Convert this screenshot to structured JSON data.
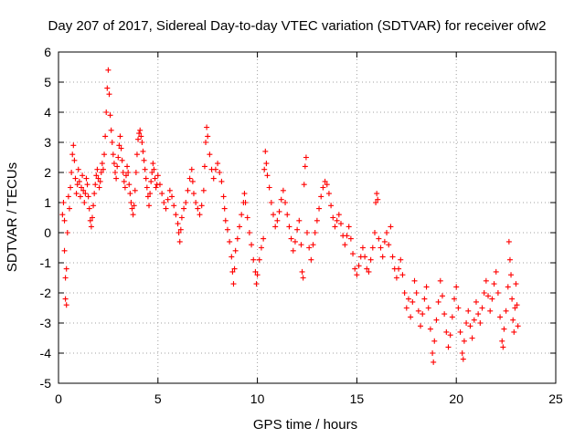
{
  "chart_data": {
    "type": "scatter",
    "title": "Day 207 of 2017, Sidereal Day-to-day VTEC variation (SDTVAR) for receiver ofw2",
    "xlabel": "GPS time / hours",
    "ylabel": "SDTVAR / TECUs",
    "xlim": [
      0,
      25
    ],
    "ylim": [
      -5,
      6
    ],
    "xticks": [
      0,
      5,
      10,
      15,
      20,
      25
    ],
    "yticks": [
      -5,
      -4,
      -3,
      -2,
      -1,
      0,
      1,
      2,
      3,
      4,
      5,
      6
    ],
    "grid": true,
    "marker": "plus",
    "marker_color": "#ff0000",
    "series": [
      {
        "name": "ofw2",
        "points": [
          [
            0.2,
            0.6
          ],
          [
            0.25,
            1.0
          ],
          [
            0.3,
            0.4
          ],
          [
            0.3,
            -0.6
          ],
          [
            0.35,
            -1.5
          ],
          [
            0.35,
            -2.2
          ],
          [
            0.4,
            -2.4
          ],
          [
            0.4,
            -1.2
          ],
          [
            0.45,
            0.0
          ],
          [
            0.5,
            1.2
          ],
          [
            0.55,
            0.8
          ],
          [
            0.6,
            1.5
          ],
          [
            0.65,
            2.0
          ],
          [
            0.7,
            2.6
          ],
          [
            0.75,
            2.9
          ],
          [
            0.8,
            2.4
          ],
          [
            0.85,
            1.8
          ],
          [
            0.9,
            1.3
          ],
          [
            0.95,
            1.6
          ],
          [
            1.0,
            2.1
          ],
          [
            1.05,
            1.7
          ],
          [
            1.1,
            1.2
          ],
          [
            1.15,
            1.5
          ],
          [
            1.2,
            1.9
          ],
          [
            1.25,
            1.4
          ],
          [
            1.3,
            1.0
          ],
          [
            1.35,
            1.3
          ],
          [
            1.4,
            1.8
          ],
          [
            1.45,
            1.6
          ],
          [
            1.5,
            1.2
          ],
          [
            1.55,
            0.8
          ],
          [
            1.6,
            0.4
          ],
          [
            1.65,
            0.2
          ],
          [
            1.7,
            0.5
          ],
          [
            1.75,
            0.9
          ],
          [
            1.8,
            1.3
          ],
          [
            1.85,
            1.6
          ],
          [
            1.9,
            1.9
          ],
          [
            1.95,
            2.1
          ],
          [
            2.0,
            1.8
          ],
          [
            2.05,
            1.5
          ],
          [
            2.1,
            1.7
          ],
          [
            2.15,
            2.0
          ],
          [
            2.2,
            2.3
          ],
          [
            2.25,
            2.1
          ],
          [
            2.3,
            2.6
          ],
          [
            2.35,
            3.2
          ],
          [
            2.4,
            4.0
          ],
          [
            2.45,
            4.8
          ],
          [
            2.5,
            5.4
          ],
          [
            2.55,
            4.6
          ],
          [
            2.6,
            3.9
          ],
          [
            2.65,
            3.4
          ],
          [
            2.7,
            3.0
          ],
          [
            2.75,
            2.6
          ],
          [
            2.8,
            2.3
          ],
          [
            2.85,
            2.0
          ],
          [
            2.9,
            1.8
          ],
          [
            2.95,
            2.2
          ],
          [
            3.0,
            2.5
          ],
          [
            3.05,
            2.9
          ],
          [
            3.1,
            3.2
          ],
          [
            3.15,
            2.8
          ],
          [
            3.2,
            2.4
          ],
          [
            3.25,
            2.0
          ],
          [
            3.3,
            1.7
          ],
          [
            3.35,
            1.5
          ],
          [
            3.4,
            1.9
          ],
          [
            3.45,
            2.2
          ],
          [
            3.5,
            2.0
          ],
          [
            3.55,
            1.6
          ],
          [
            3.6,
            1.3
          ],
          [
            3.65,
            1.0
          ],
          [
            3.7,
            0.8
          ],
          [
            3.75,
            0.6
          ],
          [
            3.8,
            0.9
          ],
          [
            3.85,
            1.4
          ],
          [
            3.9,
            2.0
          ],
          [
            3.95,
            2.6
          ],
          [
            4.0,
            3.1
          ],
          [
            4.05,
            3.3
          ],
          [
            4.1,
            3.4
          ],
          [
            4.15,
            3.2
          ],
          [
            4.2,
            3.0
          ],
          [
            4.25,
            2.7
          ],
          [
            4.3,
            2.4
          ],
          [
            4.35,
            2.1
          ],
          [
            4.4,
            1.8
          ],
          [
            4.45,
            1.5
          ],
          [
            4.5,
            1.2
          ],
          [
            4.55,
            0.9
          ],
          [
            4.6,
            1.3
          ],
          [
            4.65,
            1.7
          ],
          [
            4.7,
            2.0
          ],
          [
            4.75,
            2.3
          ],
          [
            4.8,
            2.1
          ],
          [
            4.85,
            1.8
          ],
          [
            4.9,
            1.5
          ],
          [
            4.95,
            1.6
          ],
          [
            5.0,
            1.9
          ],
          [
            5.1,
            1.6
          ],
          [
            5.2,
            1.3
          ],
          [
            5.3,
            1.0
          ],
          [
            5.4,
            0.8
          ],
          [
            5.5,
            1.1
          ],
          [
            5.6,
            1.4
          ],
          [
            5.7,
            1.2
          ],
          [
            5.8,
            0.9
          ],
          [
            5.9,
            0.6
          ],
          [
            6.0,
            0.3
          ],
          [
            6.05,
            0.0
          ],
          [
            6.1,
            -0.3
          ],
          [
            6.15,
            0.1
          ],
          [
            6.2,
            0.5
          ],
          [
            6.3,
            0.8
          ],
          [
            6.4,
            1.0
          ],
          [
            6.5,
            1.4
          ],
          [
            6.6,
            1.8
          ],
          [
            6.7,
            2.1
          ],
          [
            6.75,
            1.7
          ],
          [
            6.8,
            1.3
          ],
          [
            6.9,
            1.0
          ],
          [
            7.0,
            0.8
          ],
          [
            7.1,
            0.6
          ],
          [
            7.2,
            0.9
          ],
          [
            7.3,
            1.4
          ],
          [
            7.35,
            2.2
          ],
          [
            7.4,
            3.0
          ],
          [
            7.45,
            3.5
          ],
          [
            7.5,
            3.2
          ],
          [
            7.6,
            2.6
          ],
          [
            7.7,
            2.1
          ],
          [
            7.8,
            1.8
          ],
          [
            7.9,
            2.1
          ],
          [
            8.0,
            2.3
          ],
          [
            8.1,
            2.0
          ],
          [
            8.2,
            1.7
          ],
          [
            8.3,
            1.2
          ],
          [
            8.35,
            0.8
          ],
          [
            8.4,
            0.4
          ],
          [
            8.5,
            0.1
          ],
          [
            8.6,
            -0.3
          ],
          [
            8.7,
            -0.8
          ],
          [
            8.75,
            -1.3
          ],
          [
            8.8,
            -1.7
          ],
          [
            8.85,
            -1.2
          ],
          [
            8.9,
            -0.6
          ],
          [
            9.0,
            -0.2
          ],
          [
            9.1,
            0.2
          ],
          [
            9.2,
            0.6
          ],
          [
            9.3,
            1.0
          ],
          [
            9.35,
            1.3
          ],
          [
            9.4,
            1.0
          ],
          [
            9.5,
            0.5
          ],
          [
            9.6,
            0.0
          ],
          [
            9.7,
            -0.4
          ],
          [
            9.8,
            -0.9
          ],
          [
            9.9,
            -1.3
          ],
          [
            9.95,
            -1.7
          ],
          [
            10.0,
            -1.4
          ],
          [
            10.1,
            -0.9
          ],
          [
            10.2,
            -0.5
          ],
          [
            10.3,
            -0.2
          ],
          [
            10.35,
            2.1
          ],
          [
            10.4,
            2.7
          ],
          [
            10.45,
            2.3
          ],
          [
            10.5,
            1.9
          ],
          [
            10.6,
            1.5
          ],
          [
            10.7,
            1.0
          ],
          [
            10.8,
            0.6
          ],
          [
            10.9,
            0.2
          ],
          [
            11.0,
            0.4
          ],
          [
            11.1,
            0.7
          ],
          [
            11.2,
            1.1
          ],
          [
            11.3,
            1.4
          ],
          [
            11.4,
            1.0
          ],
          [
            11.5,
            0.6
          ],
          [
            11.6,
            0.2
          ],
          [
            11.7,
            -0.2
          ],
          [
            11.8,
            -0.6
          ],
          [
            11.9,
            -0.3
          ],
          [
            12.0,
            0.1
          ],
          [
            12.1,
            0.4
          ],
          [
            12.2,
            -0.4
          ],
          [
            12.25,
            -1.3
          ],
          [
            12.3,
            -1.5
          ],
          [
            12.35,
            1.6
          ],
          [
            12.4,
            2.2
          ],
          [
            12.45,
            2.5
          ],
          [
            12.5,
            0.0
          ],
          [
            12.6,
            -0.5
          ],
          [
            12.7,
            -0.9
          ],
          [
            12.8,
            -0.4
          ],
          [
            12.9,
            0.0
          ],
          [
            13.0,
            0.4
          ],
          [
            13.1,
            0.8
          ],
          [
            13.2,
            1.2
          ],
          [
            13.3,
            1.5
          ],
          [
            13.4,
            1.7
          ],
          [
            13.5,
            1.6
          ],
          [
            13.6,
            1.3
          ],
          [
            13.7,
            0.9
          ],
          [
            13.8,
            0.5
          ],
          [
            13.9,
            0.2
          ],
          [
            14.0,
            0.4
          ],
          [
            14.1,
            0.6
          ],
          [
            14.2,
            0.3
          ],
          [
            14.3,
            -0.1
          ],
          [
            14.4,
            -0.4
          ],
          [
            14.5,
            -0.1
          ],
          [
            14.6,
            0.2
          ],
          [
            14.7,
            -0.2
          ],
          [
            14.8,
            -0.7
          ],
          [
            14.9,
            -1.2
          ],
          [
            15.0,
            -1.4
          ],
          [
            15.1,
            -1.1
          ],
          [
            15.2,
            -0.8
          ],
          [
            15.3,
            -0.5
          ],
          [
            15.4,
            -0.8
          ],
          [
            15.5,
            -1.2
          ],
          [
            15.6,
            -1.3
          ],
          [
            15.7,
            -0.9
          ],
          [
            15.8,
            -0.5
          ],
          [
            15.9,
            0.0
          ],
          [
            15.95,
            1.0
          ],
          [
            16.0,
            1.3
          ],
          [
            16.05,
            1.1
          ],
          [
            16.1,
            -0.2
          ],
          [
            16.2,
            -0.5
          ],
          [
            16.3,
            -0.8
          ],
          [
            16.4,
            -0.3
          ],
          [
            16.5,
            0.0
          ],
          [
            16.6,
            -0.4
          ],
          [
            16.7,
            0.2
          ],
          [
            16.8,
            -0.8
          ],
          [
            16.9,
            -1.2
          ],
          [
            17.0,
            -1.5
          ],
          [
            17.1,
            -1.2
          ],
          [
            17.2,
            -0.9
          ],
          [
            17.3,
            -1.4
          ],
          [
            17.4,
            -2.0
          ],
          [
            17.5,
            -2.5
          ],
          [
            17.6,
            -2.2
          ],
          [
            17.7,
            -2.8
          ],
          [
            17.8,
            -2.3
          ],
          [
            17.9,
            -1.6
          ],
          [
            18.0,
            -2.0
          ],
          [
            18.1,
            -2.6
          ],
          [
            18.2,
            -3.1
          ],
          [
            18.3,
            -2.7
          ],
          [
            18.4,
            -2.2
          ],
          [
            18.5,
            -1.8
          ],
          [
            18.6,
            -2.5
          ],
          [
            18.7,
            -3.2
          ],
          [
            18.8,
            -4.0
          ],
          [
            18.85,
            -4.3
          ],
          [
            18.9,
            -3.6
          ],
          [
            19.0,
            -2.9
          ],
          [
            19.1,
            -2.3
          ],
          [
            19.2,
            -1.6
          ],
          [
            19.3,
            -2.1
          ],
          [
            19.4,
            -2.7
          ],
          [
            19.5,
            -3.3
          ],
          [
            19.6,
            -3.8
          ],
          [
            19.7,
            -3.4
          ],
          [
            19.8,
            -2.8
          ],
          [
            19.9,
            -2.2
          ],
          [
            20.0,
            -1.8
          ],
          [
            20.1,
            -2.5
          ],
          [
            20.2,
            -3.3
          ],
          [
            20.3,
            -4.0
          ],
          [
            20.35,
            -4.2
          ],
          [
            20.4,
            -3.6
          ],
          [
            20.5,
            -3.0
          ],
          [
            20.6,
            -2.6
          ],
          [
            20.7,
            -3.1
          ],
          [
            20.8,
            -3.5
          ],
          [
            20.9,
            -2.9
          ],
          [
            21.0,
            -2.3
          ],
          [
            21.1,
            -2.7
          ],
          [
            21.2,
            -3.0
          ],
          [
            21.3,
            -2.5
          ],
          [
            21.4,
            -2.0
          ],
          [
            21.5,
            -1.6
          ],
          [
            21.6,
            -2.1
          ],
          [
            21.7,
            -2.6
          ],
          [
            21.8,
            -2.2
          ],
          [
            21.9,
            -1.7
          ],
          [
            22.0,
            -1.3
          ],
          [
            22.1,
            -2.0
          ],
          [
            22.2,
            -2.8
          ],
          [
            22.3,
            -3.6
          ],
          [
            22.35,
            -3.8
          ],
          [
            22.4,
            -3.2
          ],
          [
            22.5,
            -2.6
          ],
          [
            22.6,
            -1.8
          ],
          [
            22.65,
            -0.3
          ],
          [
            22.7,
            -0.9
          ],
          [
            22.75,
            -1.4
          ],
          [
            22.8,
            -2.2
          ],
          [
            22.85,
            -2.9
          ],
          [
            22.9,
            -3.3
          ],
          [
            22.95,
            -2.5
          ],
          [
            23.0,
            -1.7
          ],
          [
            23.05,
            -2.4
          ],
          [
            23.1,
            -3.1
          ]
        ]
      }
    ]
  }
}
